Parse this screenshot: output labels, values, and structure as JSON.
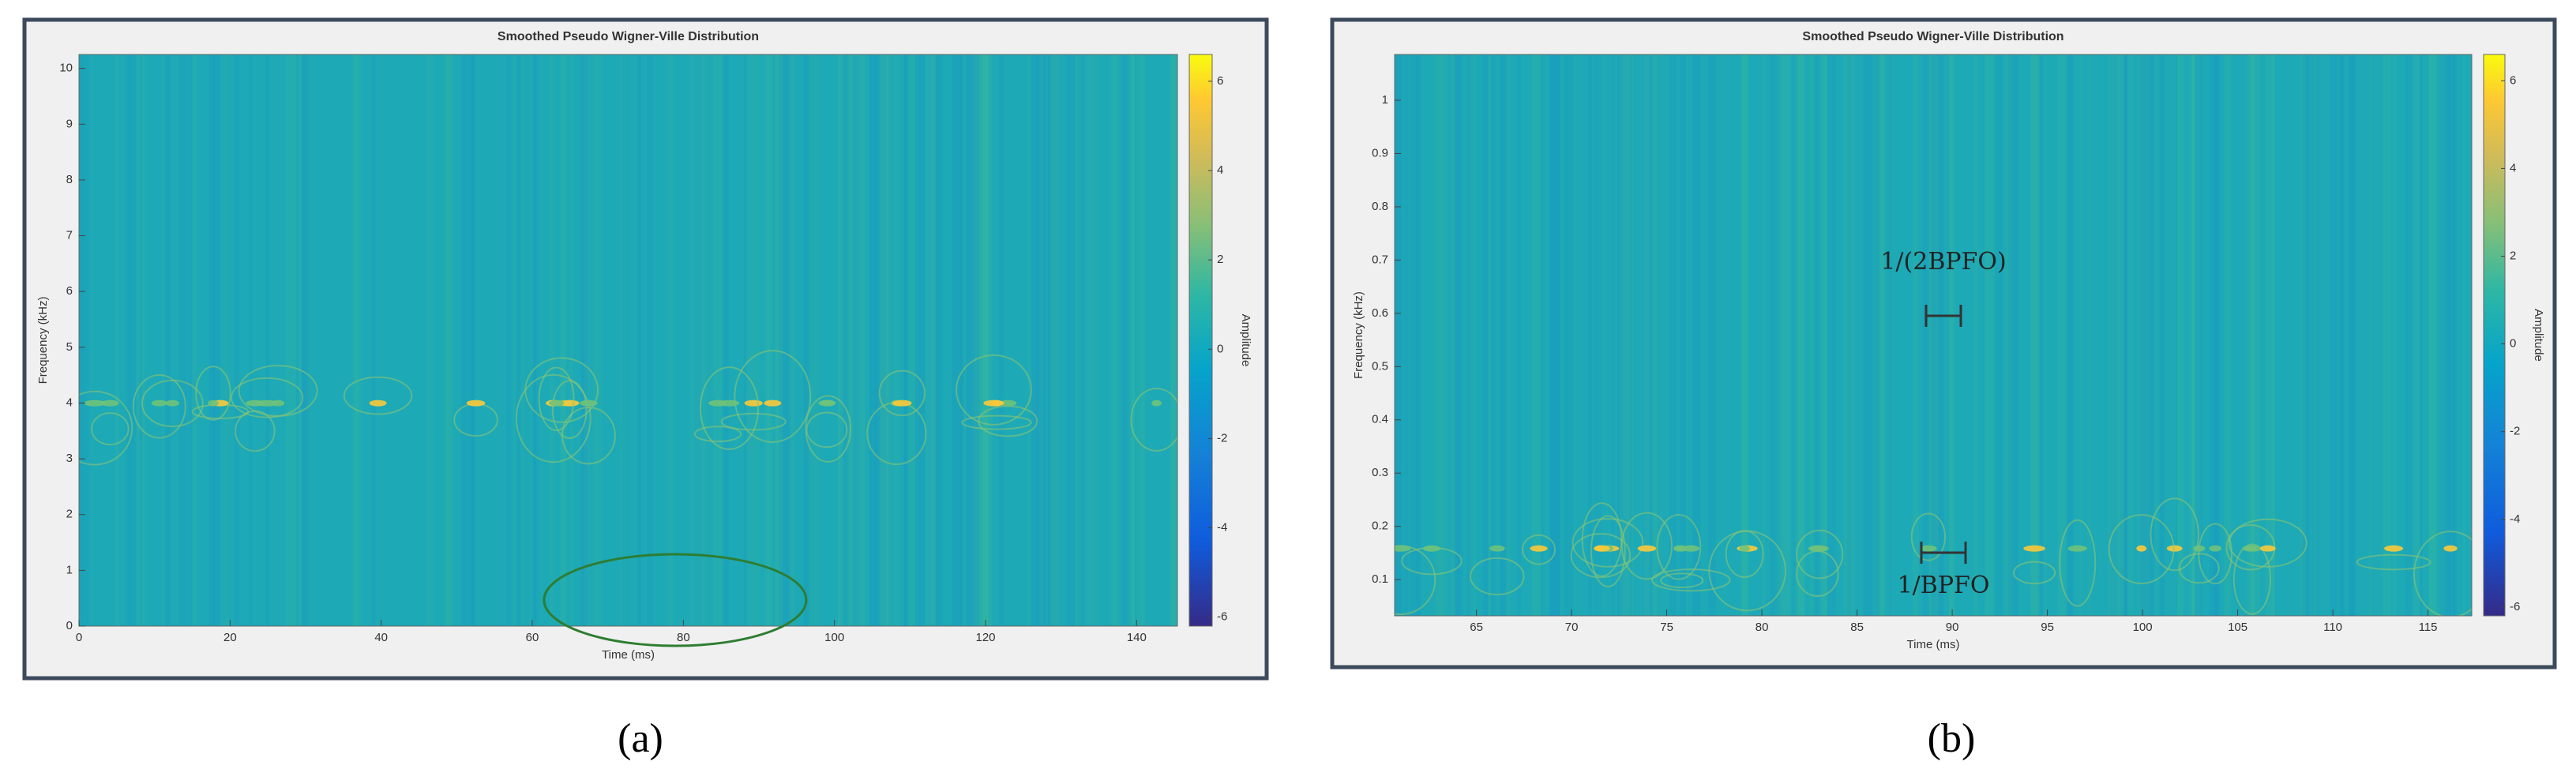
{
  "chart_data": [
    {
      "type": "heatmap",
      "title": "Smoothed Pseudo Wigner-Ville Distribution",
      "x_label": "Time (ms)",
      "y_label": "Frequency (kHz)",
      "colorbar_label": "Amplitude",
      "xlim": [
        0,
        145.4
      ],
      "xticks": [
        0,
        20,
        40,
        60,
        80,
        100,
        120,
        140
      ],
      "ylim": [
        0,
        10.25
      ],
      "yticks": [
        0,
        1,
        2,
        3,
        4,
        5,
        6,
        7,
        8,
        9,
        10
      ],
      "clim": [
        -6.2,
        6.6
      ],
      "cticks": [
        -6,
        -4,
        -2,
        0,
        2,
        4,
        6
      ],
      "panel_label": "(a)",
      "annotations": []
    },
    {
      "type": "heatmap",
      "title": "Smoothed Pseudo Wigner-Ville Distribution",
      "x_label": "Time (ms)",
      "y_label": "Frequency (kHz)",
      "colorbar_label": "Amplitude",
      "xlim": [
        60.7,
        117.3
      ],
      "xticks": [
        65,
        70,
        75,
        80,
        85,
        90,
        95,
        100,
        105,
        110,
        115
      ],
      "ylim": [
        0.032,
        1.086
      ],
      "yticks": [
        0.1,
        0.2,
        0.3,
        0.4,
        0.5,
        0.6,
        0.7,
        0.8,
        0.9,
        1
      ],
      "clim": [
        -6.2,
        6.6
      ],
      "cticks": [
        -6,
        -4,
        -2,
        0,
        2,
        4,
        6
      ],
      "panel_label": "(b)",
      "annotations": [
        "1/(2BPFO)",
        "1/BPFO"
      ]
    }
  ]
}
